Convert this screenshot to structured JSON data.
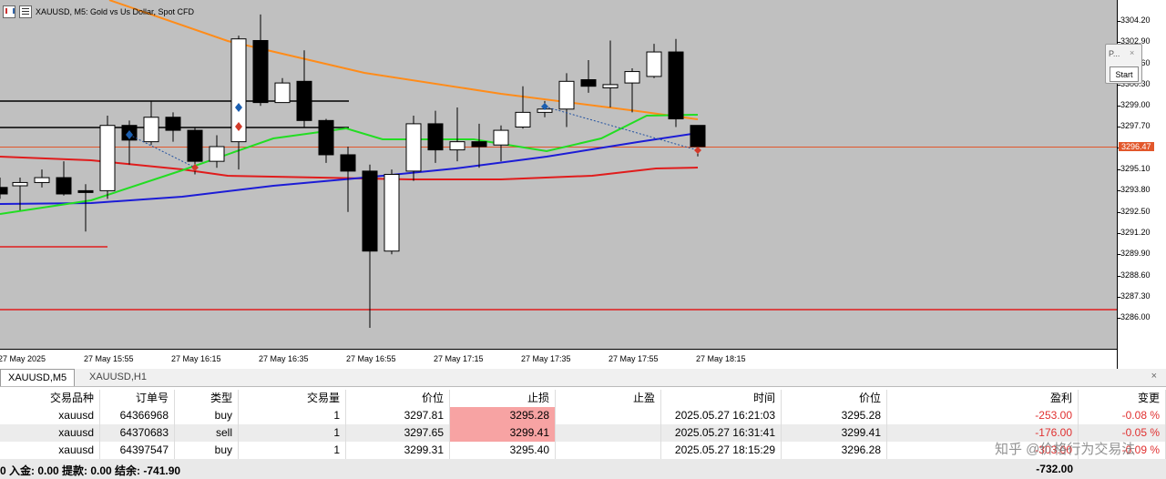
{
  "chart": {
    "title": "XAUUSD, M5:  Gold vs Us Dollar, Spot CFD",
    "price_labels": [
      "3304.20",
      "3302.90",
      "3301.60",
      "3300.30",
      "3299.00",
      "3297.70",
      "3296.47",
      "3295.10",
      "3293.80",
      "3292.50",
      "3291.20",
      "3289.90",
      "3288.60",
      "3287.30",
      "3286.00"
    ],
    "current_price": "3296.47",
    "time_labels": [
      "27 May 2025",
      "27 May 15:55",
      "27 May 16:15",
      "27 May 16:35",
      "27 May 16:55",
      "27 May 17:15",
      "27 May 17:35",
      "27 May 17:55",
      "27 May 18:15"
    ],
    "panel": {
      "title": "P...",
      "close": "×",
      "button": "Start"
    },
    "colors": {
      "background": "#c0c0c0",
      "ma_orange": "#ff8c1a",
      "ma_green": "#22dd22",
      "ma_blue": "#1c1cd6",
      "ma_red": "#e01c1c",
      "current_price": "#e2572b"
    }
  },
  "tabs": [
    {
      "label": "XAUUSD,M5",
      "active": true
    },
    {
      "label": "XAUUSD,H1",
      "active": false
    }
  ],
  "tab_close": "×",
  "table": {
    "headers": [
      "交易品种",
      "订单号",
      "类型",
      "交易量",
      "价位",
      "止损",
      "止盈",
      "时间",
      "价位",
      "盈利",
      "变更"
    ],
    "rows": [
      {
        "symbol": "xauusd",
        "order": "64366968",
        "type": "buy",
        "volume": "1",
        "open_price": "3297.81",
        "sl": "3295.28",
        "tp": "",
        "time": "2025.05.27 16:21:03",
        "price": "3295.28",
        "profit": "-253.00",
        "change": "-0.08 %"
      },
      {
        "symbol": "xauusd",
        "order": "64370683",
        "type": "sell",
        "volume": "1",
        "open_price": "3297.65",
        "sl": "3299.41",
        "tp": "",
        "time": "2025.05.27 16:31:41",
        "price": "3299.41",
        "profit": "-176.00",
        "change": "-0.05 %"
      },
      {
        "symbol": "xauusd",
        "order": "64397547",
        "type": "buy",
        "volume": "1",
        "open_price": "3299.31",
        "sl": "3295.40",
        "tp": "",
        "time": "2025.05.27 18:15:29",
        "price": "3296.28",
        "profit": "-303.00",
        "change": "-0.09 %"
      }
    ]
  },
  "summary": {
    "left": "0  入金: 0.00  提款: 0.00  结余: -741.90",
    "total_profit": "-732.00"
  },
  "watermark": "知乎 @价格行为交易法"
}
